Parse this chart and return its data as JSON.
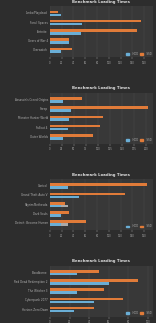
{
  "background_color": "#2d2d2d",
  "panel_color": "#383838",
  "title_color": "#e0e0e0",
  "label_color": "#b0b0b0",
  "value_color": "#aaaaaa",
  "hdd_color": "#6aaed6",
  "ssd_color": "#e07b39",
  "hdd2_color": "#aaaaaa",
  "title": "Benchmark Loading Times",
  "sections": [
    {
      "games": [
        {
          "name": "Overwatch",
          "hdd": 18,
          "ssd": 38
        },
        {
          "name": "Gears of War 4",
          "hdd": 32,
          "ssd": 32
        },
        {
          "name": "Fortnite",
          "hdd": 52,
          "ssd": 148
        },
        {
          "name": "Forall Spaces",
          "hdd": 55,
          "ssd": 155
        },
        {
          "name": "Limbo/Playdead",
          "hdd": 18,
          "ssd": 13
        }
      ],
      "xmax": 175
    },
    {
      "games": [
        {
          "name": "Outer Worlds",
          "hdd": 28,
          "ssd": 90
        },
        {
          "name": "Fallout 4",
          "hdd": 38,
          "ssd": 105
        },
        {
          "name": "Monster Hunter World",
          "hdd": 40,
          "ssd": 110
        },
        {
          "name": "Steep",
          "hdd": 45,
          "ssd": 205
        },
        {
          "name": "Assassin's Creed Origins",
          "hdd": 28,
          "ssd": 68
        }
      ],
      "xmax": 215
    },
    {
      "games": [
        {
          "name": "Detroit: Become Human",
          "hdd": 18,
          "ssd": 62,
          "hdd2": 12
        },
        {
          "name": "Dark Souls",
          "hdd": 18,
          "ssd": 32,
          "hdd2": 0
        },
        {
          "name": "Skyrim/Bethesda",
          "hdd": 18,
          "ssd": 25,
          "hdd2": 12
        },
        {
          "name": "Grand Theft Auto V",
          "hdd": 50,
          "ssd": 128,
          "hdd2": 0
        },
        {
          "name": "Control",
          "hdd": 30,
          "ssd": 165,
          "hdd2": 0
        }
      ],
      "xmax": 175
    },
    {
      "games": [
        {
          "name": "Horizon Zero Dawn",
          "hdd": 25,
          "ssd": 45
        },
        {
          "name": "Cyberpunk 2077",
          "hdd": 45,
          "ssd": 75
        },
        {
          "name": "The Witcher 3",
          "hdd": 28,
          "ssd": 55
        },
        {
          "name": "Red Dead Redemption 2",
          "hdd": 60,
          "ssd": 90
        },
        {
          "name": "Bloodborne",
          "hdd": 28,
          "ssd": 50
        }
      ],
      "xmax": 105
    }
  ]
}
